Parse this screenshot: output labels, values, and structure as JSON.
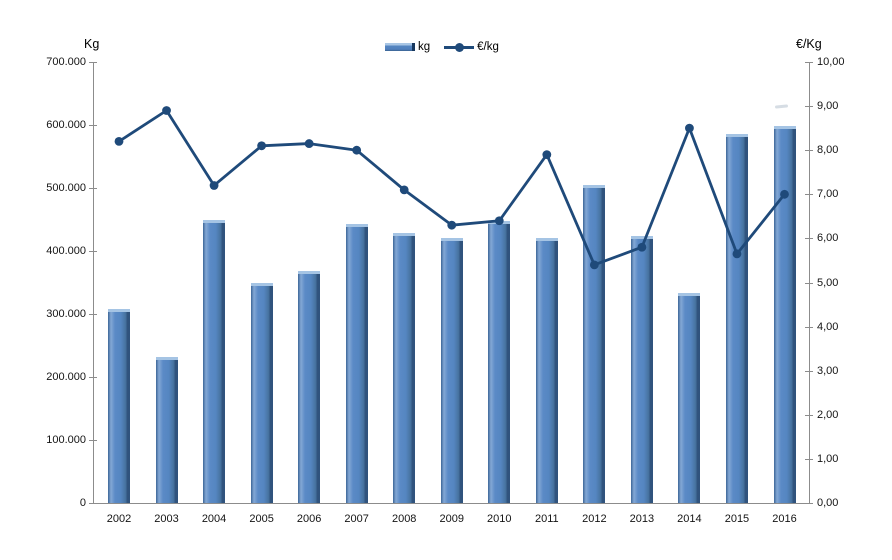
{
  "chart_data": {
    "type": "combo (bar + line)",
    "categories": [
      "2002",
      "2003",
      "2004",
      "2005",
      "2006",
      "2007",
      "2008",
      "2009",
      "2010",
      "2011",
      "2012",
      "2013",
      "2014",
      "2015",
      "2016"
    ],
    "series": [
      {
        "name": "kg",
        "type": "bar",
        "axis": "left",
        "values": [
          308000,
          232000,
          450000,
          350000,
          368000,
          443000,
          428000,
          420000,
          448000,
          420000,
          505000,
          424000,
          333000,
          586000,
          598000
        ]
      },
      {
        "name": "€/kg",
        "type": "line",
        "axis": "right",
        "values": [
          8.2,
          8.9,
          7.2,
          8.1,
          8.15,
          8.0,
          7.1,
          6.3,
          6.4,
          7.9,
          5.4,
          5.8,
          8.5,
          5.65,
          7.0
        ]
      }
    ],
    "left_axis": {
      "label": "Kg",
      "min": 0,
      "max": 700000,
      "tick_labels": [
        "700.000",
        "600.000",
        "500.000",
        "400.000",
        "300.000",
        "200.000",
        "100.000",
        "0"
      ]
    },
    "right_axis": {
      "label": "€/Kg",
      "min": 0,
      "max": 10,
      "tick_labels": [
        "10,00",
        "9,00",
        "8,00",
        "7,00",
        "6,00",
        "5,00",
        "4,00",
        "3,00",
        "2,00",
        "1,00",
        "0,00"
      ]
    },
    "legend": {
      "position": "top-center",
      "items": [
        {
          "label": "kg",
          "swatch": "bar"
        },
        {
          "label": "€/kg",
          "swatch": "line-marker"
        }
      ]
    },
    "grid": false,
    "colors": {
      "bar_fill": "#5586c1",
      "bar_highlight": "#a5c4e4",
      "bar_shadow": "#30537d",
      "line": "#1f4a7a",
      "axis_line": "#8c8c8c",
      "text": "#141414",
      "background": "#ffffff"
    }
  }
}
